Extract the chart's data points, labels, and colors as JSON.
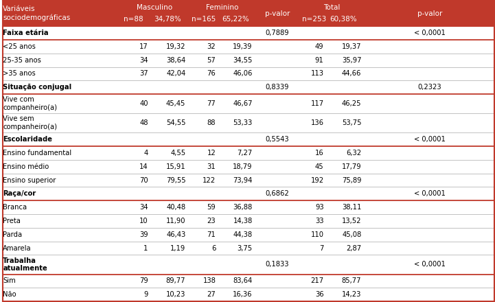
{
  "header_bg": "#c0392b",
  "header_text_color": "#ffffff",
  "border_color": "#c0392b",
  "light_line_color": "#aaaaaa",
  "sections": [
    {
      "label": "Faixa etária",
      "p1": "0,7889",
      "p2": "< 0,0001",
      "rows": [
        [
          "<25 anos",
          "17",
          "19,32",
          "32",
          "19,39",
          "49",
          "19,37"
        ],
        [
          "25-35 anos",
          "34",
          "38,64",
          "57",
          "34,55",
          "91",
          "35,97"
        ],
        [
          ">35 anos",
          "37",
          "42,04",
          "76",
          "46,06",
          "113",
          "44,66"
        ]
      ]
    },
    {
      "label": "Situação conjugal",
      "p1": "0,8339",
      "p2": "0,2323",
      "rows": [
        [
          "Vive com\ncompanheiro(a)",
          "40",
          "45,45",
          "77",
          "46,67",
          "117",
          "46,25"
        ],
        [
          "Vive sem\ncompanheiro(a)",
          "48",
          "54,55",
          "88",
          "53,33",
          "136",
          "53,75"
        ]
      ]
    },
    {
      "label": "Escolaridade",
      "p1": "0,5543",
      "p2": "< 0,0001",
      "rows": [
        [
          "Ensino fundamental",
          "4",
          "4,55",
          "12",
          "7,27",
          "16",
          "6,32"
        ],
        [
          "Ensino médio",
          "14",
          "15,91",
          "31",
          "18,79",
          "45",
          "17,79"
        ],
        [
          "Ensino superior",
          "70",
          "79,55",
          "122",
          "73,94",
          "192",
          "75,89"
        ]
      ]
    },
    {
      "label": "Raça/cor",
      "p1": "0,6862",
      "p2": "< 0,0001",
      "rows": [
        [
          "Branca",
          "34",
          "40,48",
          "59",
          "36,88",
          "93",
          "38,11"
        ],
        [
          "Preta",
          "10",
          "11,90",
          "23",
          "14,38",
          "33",
          "13,52"
        ],
        [
          "Parda",
          "39",
          "46,43",
          "71",
          "44,38",
          "110",
          "45,08"
        ],
        [
          "Amarela",
          "1",
          "1,19",
          "6",
          "3,75",
          "7",
          "2,87"
        ]
      ]
    },
    {
      "label": "Trabalha\natualmente",
      "p1": "0,1833",
      "p2": "< 0,0001",
      "rows": [
        [
          "Sim",
          "79",
          "89,77",
          "138",
          "83,64",
          "217",
          "85,77"
        ],
        [
          "Não",
          "9",
          "10,23",
          "27",
          "16,36",
          "36",
          "14,23"
        ]
      ]
    }
  ],
  "figsize": [
    7.21,
    4.4
  ],
  "dpi": 100
}
